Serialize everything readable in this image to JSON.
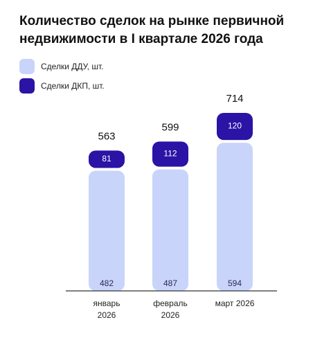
{
  "chart_data": {
    "type": "stacked-bar",
    "title": "Количество сделок на рынке первичной недвижимости в I квартале 2026 года",
    "categories": [
      "январь 2026",
      "февраль 2026",
      "март 2026"
    ],
    "series": [
      {
        "name": "Сделки ДДУ, шт.",
        "color": "#c9d4fb",
        "values": [
          482,
          487,
          594
        ]
      },
      {
        "name": "Сделки ДКП, шт.",
        "color": "#2b13a6",
        "values": [
          81,
          112,
          120
        ]
      }
    ],
    "totals": [
      563,
      599,
      714
    ],
    "ylim": [
      0,
      800
    ]
  }
}
